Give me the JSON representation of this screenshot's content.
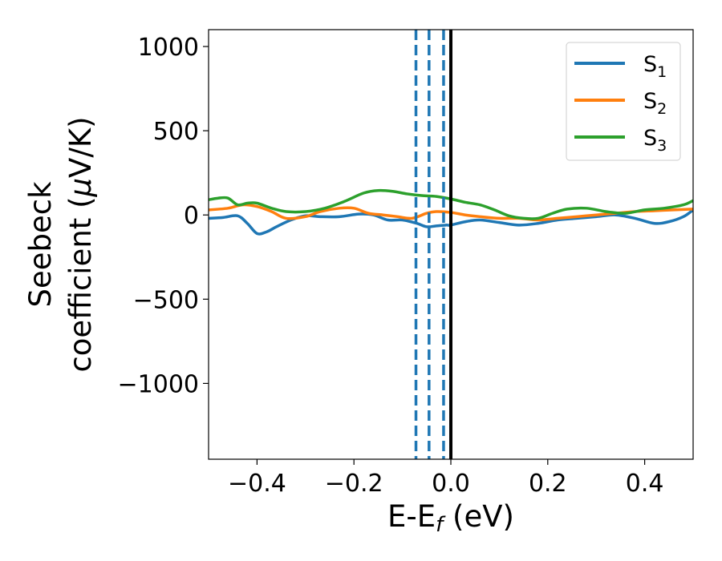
{
  "chart_data": {
    "type": "line",
    "xlabel": {
      "base": "E-E",
      "sub": "f",
      "unit": " (eV)"
    },
    "ylabel": {
      "line1": "Seebeck",
      "line2": "coefficient  (",
      "mu": "μ",
      "unit": "V/K)"
    },
    "xlim": [
      -0.5,
      0.5
    ],
    "ylim": [
      -1450,
      1100
    ],
    "xticks": [
      -0.4,
      -0.2,
      0.0,
      0.2,
      0.4
    ],
    "xtick_labels": [
      "−0.4",
      "−0.2",
      "0.0",
      "0.2",
      "0.4"
    ],
    "yticks": [
      1000,
      500,
      0,
      -500,
      -1000
    ],
    "ytick_labels": [
      "1000",
      "500",
      "0",
      "−500",
      "−1000"
    ],
    "grid": false,
    "legend_position": "top-right",
    "vlines": [
      {
        "x": -0.072,
        "style": "dashed",
        "color": "#1f77b4"
      },
      {
        "x": -0.045,
        "style": "dashed",
        "color": "#1f77b4"
      },
      {
        "x": -0.015,
        "style": "dashed",
        "color": "#1f77b4"
      },
      {
        "x": 0.0,
        "style": "solid",
        "color": "#000000"
      }
    ],
    "series": [
      {
        "name": "S",
        "sub": "1",
        "color": "#1f77b4",
        "x": [
          -0.5,
          -0.47,
          -0.44,
          -0.42,
          -0.4,
          -0.38,
          -0.36,
          -0.33,
          -0.3,
          -0.27,
          -0.23,
          -0.19,
          -0.16,
          -0.13,
          -0.1,
          -0.07,
          -0.05,
          -0.03,
          -0.01,
          0.0,
          0.03,
          0.06,
          0.1,
          0.14,
          0.18,
          0.22,
          0.26,
          0.3,
          0.34,
          0.38,
          0.42,
          0.45,
          0.48,
          0.5
        ],
        "y": [
          -20,
          -15,
          -5,
          -50,
          -110,
          -100,
          -70,
          -30,
          -5,
          -10,
          -10,
          5,
          0,
          -30,
          -30,
          -50,
          -70,
          -65,
          -60,
          -60,
          -40,
          -30,
          -45,
          -60,
          -50,
          -30,
          -20,
          -10,
          0,
          -20,
          -50,
          -40,
          -10,
          30
        ]
      },
      {
        "name": "S",
        "sub": "2",
        "color": "#ff7f0e",
        "x": [
          -0.5,
          -0.46,
          -0.43,
          -0.4,
          -0.37,
          -0.34,
          -0.3,
          -0.27,
          -0.23,
          -0.2,
          -0.17,
          -0.14,
          -0.11,
          -0.08,
          -0.05,
          -0.03,
          0.0,
          0.03,
          0.06,
          0.1,
          0.14,
          0.18,
          0.22,
          0.26,
          0.3,
          0.34,
          0.38,
          0.42,
          0.46,
          0.5
        ],
        "y": [
          30,
          40,
          60,
          50,
          20,
          -20,
          -10,
          20,
          40,
          40,
          10,
          0,
          -10,
          -20,
          10,
          20,
          15,
          0,
          -10,
          -20,
          -20,
          -30,
          -20,
          -10,
          0,
          10,
          20,
          25,
          30,
          35
        ]
      },
      {
        "name": "S",
        "sub": "3",
        "color": "#2ca02c",
        "x": [
          -0.5,
          -0.48,
          -0.46,
          -0.44,
          -0.42,
          -0.4,
          -0.37,
          -0.34,
          -0.3,
          -0.26,
          -0.22,
          -0.18,
          -0.15,
          -0.12,
          -0.09,
          -0.06,
          -0.03,
          0.0,
          0.03,
          0.06,
          0.09,
          0.12,
          0.15,
          0.18,
          0.21,
          0.24,
          0.28,
          0.32,
          0.36,
          0.4,
          0.44,
          0.48,
          0.5
        ],
        "y": [
          90,
          100,
          100,
          60,
          70,
          70,
          40,
          20,
          20,
          40,
          80,
          130,
          145,
          140,
          125,
          115,
          110,
          95,
          75,
          60,
          30,
          -5,
          -20,
          -20,
          10,
          35,
          40,
          20,
          10,
          30,
          40,
          60,
          85
        ]
      }
    ]
  }
}
